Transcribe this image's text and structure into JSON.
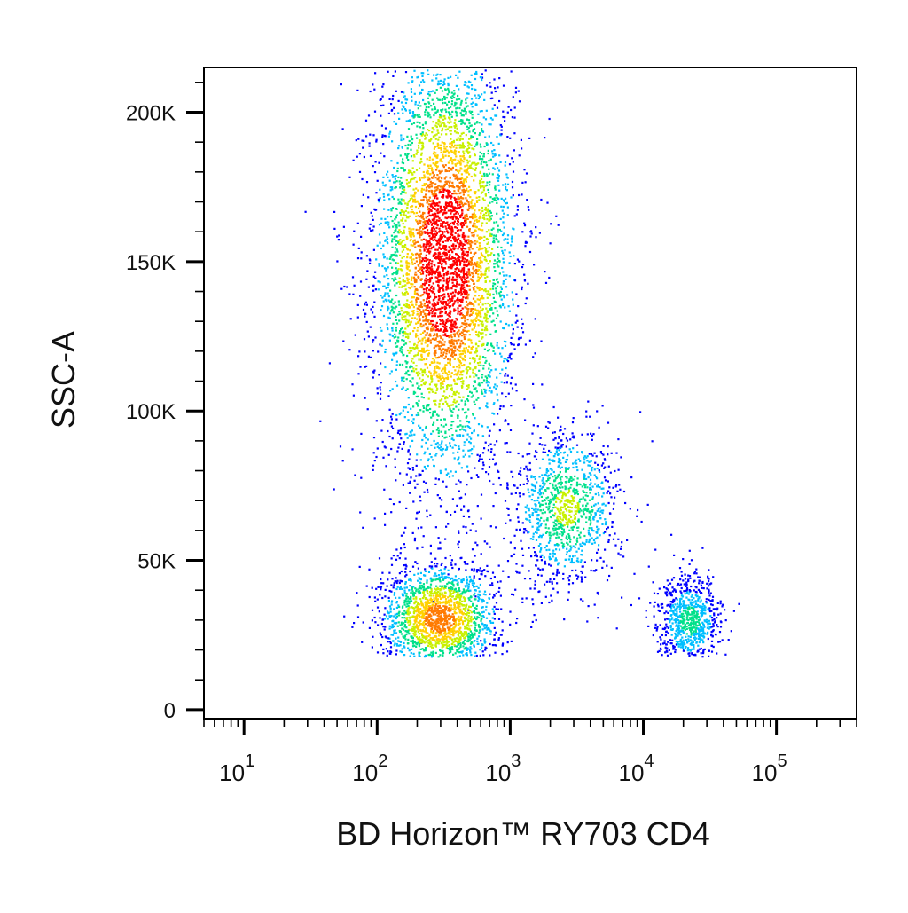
{
  "chart_data": {
    "type": "scatter",
    "subtype": "flow-cytometry density dot plot",
    "title": "",
    "xlabel": "BD Horizon™ RY703 CD4",
    "ylabel": "SSC-A",
    "x_scale": "log",
    "xlim": [
      5,
      400000
    ],
    "ylim": [
      -3000,
      215000
    ],
    "x_ticks": [
      {
        "value": 10,
        "base": "10",
        "exp": "1"
      },
      {
        "value": 100,
        "base": "10",
        "exp": "2"
      },
      {
        "value": 1000,
        "base": "10",
        "exp": "3"
      },
      {
        "value": 10000,
        "base": "10",
        "exp": "4"
      },
      {
        "value": 100000,
        "base": "10",
        "exp": "5"
      }
    ],
    "y_ticks": [
      {
        "value": 0,
        "label": "0"
      },
      {
        "value": 50000,
        "label": "50K"
      },
      {
        "value": 100000,
        "label": "100K"
      },
      {
        "value": 150000,
        "label": "150K"
      },
      {
        "value": 200000,
        "label": "200K"
      }
    ],
    "grid": false,
    "legend": "none",
    "color_scale": [
      "#0000ff",
      "#00bfff",
      "#00e08a",
      "#c8f000",
      "#ffd000",
      "#ff7a00",
      "#ff0000"
    ],
    "series": [
      {
        "center_x": 320,
        "center_y": 150000,
        "spread_log_x": 0.26,
        "spread_y": 36000,
        "count": 5200
      },
      {
        "center_x": 290,
        "center_y": 31000,
        "spread_log_x": 0.22,
        "spread_y": 9000,
        "count": 1900
      },
      {
        "center_x": 2600,
        "center_y": 68000,
        "spread_log_x": 0.2,
        "spread_y": 13000,
        "count": 1100
      },
      {
        "center_x": 22000,
        "center_y": 30000,
        "spread_log_x": 0.12,
        "spread_y": 7500,
        "count": 800
      }
    ]
  }
}
